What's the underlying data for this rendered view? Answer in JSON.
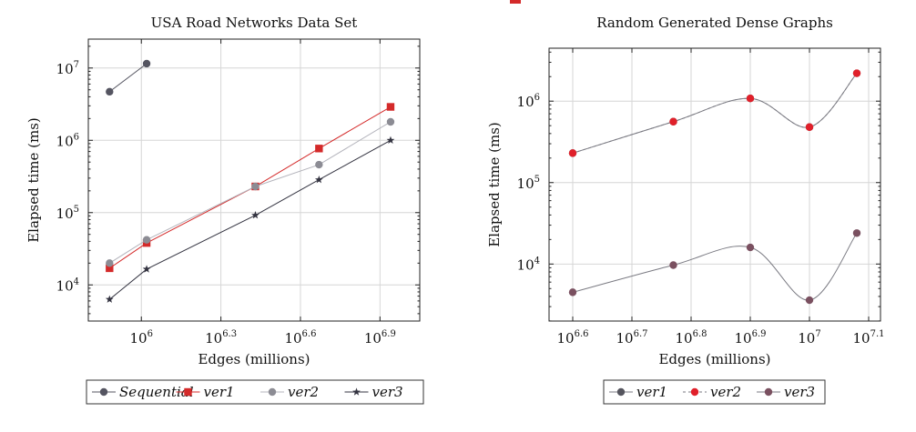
{
  "colors": {
    "sequential": "#555561",
    "ver1_left": "#d42a2a",
    "ver2_left": "#8c8c94",
    "ver3_left": "#333340",
    "line_left_ver2": "#b4b4bc",
    "ver1_right": "#55555e",
    "ver2_right": "#e0202a",
    "ver3_right": "#7a5060",
    "line_right": "#7a7a82",
    "grid": "#d6d6d6",
    "axis": "#222222",
    "legend_border": "#333333"
  },
  "chart_data": [
    {
      "type": "line",
      "title": "USA Road Networks Data Set",
      "xlabel": "Edges (millions)",
      "ylabel": "Elapsed time (ms)",
      "x_scale": "log10",
      "y_scale": "log10",
      "xlim_exp": [
        5.8,
        7.05
      ],
      "ylim_exp": [
        3.5,
        7.4
      ],
      "x_ticks": [
        {
          "exp": 6.0,
          "base": "10",
          "sup": "6"
        },
        {
          "exp": 6.3,
          "base": "10",
          "sup": "6.3"
        },
        {
          "exp": 6.6,
          "base": "10",
          "sup": "6.6"
        },
        {
          "exp": 6.9,
          "base": "10",
          "sup": "6.9"
        }
      ],
      "y_ticks": [
        {
          "exp": 4,
          "base": "10",
          "sup": "4"
        },
        {
          "exp": 5,
          "base": "10",
          "sup": "5"
        },
        {
          "exp": 6,
          "base": "10",
          "sup": "6"
        },
        {
          "exp": 7,
          "base": "10",
          "sup": "7"
        }
      ],
      "grid": true,
      "legend_position": "below",
      "smooth": false,
      "series": [
        {
          "name": "Sequential",
          "marker": "circle",
          "color_key": "sequential",
          "line_color_key": "sequential",
          "x_exp": [
            5.88,
            6.02
          ],
          "y": [
            4700000,
            11500000
          ]
        },
        {
          "name": "ver1",
          "marker": "square",
          "color_key": "ver1_left",
          "line_color_key": "ver1_left",
          "x_exp": [
            5.88,
            6.02,
            6.43,
            6.67,
            6.94
          ],
          "y": [
            17000,
            38000,
            230000,
            770000,
            2900000
          ]
        },
        {
          "name": "ver2",
          "marker": "circle",
          "color_key": "ver2_left",
          "line_color_key": "line_left_ver2",
          "x_exp": [
            5.88,
            6.02,
            6.43,
            6.67,
            6.94
          ],
          "y": [
            20000,
            42000,
            230000,
            460000,
            1800000
          ]
        },
        {
          "name": "ver3",
          "marker": "star",
          "color_key": "ver3_left",
          "line_color_key": "ver3_left",
          "x_exp": [
            5.88,
            6.02,
            6.43,
            6.67,
            6.94
          ],
          "y": [
            6300,
            16500,
            92000,
            285000,
            1000000
          ]
        }
      ]
    },
    {
      "type": "line",
      "title": "Random Generated Dense Graphs",
      "xlabel": "Edges (millions)",
      "ylabel": "Elapsed time (ms)",
      "x_scale": "log10",
      "y_scale": "log10",
      "xlim_exp": [
        6.56,
        7.12
      ],
      "ylim_exp": [
        3.3,
        6.65
      ],
      "x_ticks": [
        {
          "exp": 6.6,
          "base": "10",
          "sup": "6.6"
        },
        {
          "exp": 6.7,
          "base": "10",
          "sup": "6.7"
        },
        {
          "exp": 6.8,
          "base": "10",
          "sup": "6.8"
        },
        {
          "exp": 6.9,
          "base": "10",
          "sup": "6.9"
        },
        {
          "exp": 7.0,
          "base": "10",
          "sup": "7"
        },
        {
          "exp": 7.1,
          "base": "10",
          "sup": "7.1"
        }
      ],
      "y_ticks": [
        {
          "exp": 4,
          "base": "10",
          "sup": "4"
        },
        {
          "exp": 5,
          "base": "10",
          "sup": "5"
        },
        {
          "exp": 6,
          "base": "10",
          "sup": "6"
        }
      ],
      "grid": true,
      "legend_position": "below",
      "smooth": true,
      "series": [
        {
          "name": "ver1",
          "marker": "circle",
          "color_key": "ver1_right",
          "line_color_key": "line_right",
          "x_exp": [
            6.6,
            6.77,
            6.9,
            7.0,
            7.08
          ],
          "y": [
            230000,
            560000,
            1080000,
            480000,
            2200000
          ]
        },
        {
          "name": "ver2",
          "marker": "circle",
          "color_key": "ver2_right",
          "line_color_key": "line_right",
          "dashed": true,
          "x_exp": [
            6.6,
            6.77,
            6.9,
            7.0,
            7.08
          ],
          "y": [
            230000,
            560000,
            1080000,
            480000,
            2200000
          ]
        },
        {
          "name": "ver3",
          "marker": "circle",
          "color_key": "ver3_right",
          "line_color_key": "line_right",
          "x_exp": [
            6.6,
            6.77,
            6.9,
            7.0,
            7.08
          ],
          "y": [
            4500,
            9700,
            16000,
            3600,
            24000
          ]
        }
      ]
    }
  ]
}
